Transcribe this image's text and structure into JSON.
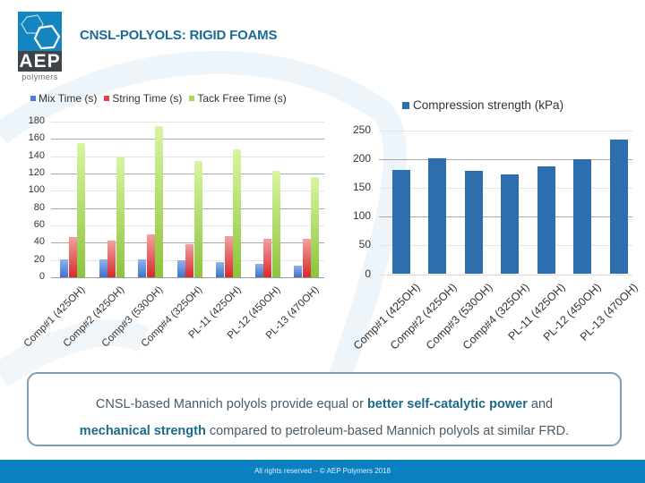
{
  "header": {
    "logo": {
      "main": "AEP",
      "sub": "polymers",
      "icon": "hexagon-rings-logo-icon"
    },
    "title": "CNSL-POLYOLS: RIGID FOAMS"
  },
  "colors": {
    "brand_blue": "#1585bf",
    "title": "#1a6b94",
    "mix_time": "#4a7fd4",
    "string_time": "#e04444",
    "tack_free_time": "#a6d65a",
    "compression": "#2e6eaf",
    "footer": "#0a80c0"
  },
  "chart_data": [
    {
      "type": "bar",
      "title": "",
      "xlabel": "",
      "ylabel": "",
      "ylim": [
        0,
        180
      ],
      "yticks": [
        0,
        20,
        40,
        60,
        80,
        100,
        120,
        140,
        160,
        180
      ],
      "grid": true,
      "legend_position": "top",
      "categories": [
        "Comp#1 (425OH)",
        "Comp#2 (425OH)",
        "Comp#3 (530OH)",
        "Comp#4 (325OH)",
        "PL-11 (425OH)",
        "PL-12 (450OH)",
        "PL-13 (470OH)"
      ],
      "series": [
        {
          "name": "Mix Time (s)",
          "values": [
            21,
            21,
            21,
            20,
            18,
            16,
            13
          ]
        },
        {
          "name": "String Time (s)",
          "values": [
            47,
            42,
            50,
            38,
            48,
            45,
            44
          ]
        },
        {
          "name": "Tack Free Time (s)",
          "values": [
            155,
            140,
            175,
            135,
            148,
            123,
            116
          ]
        }
      ]
    },
    {
      "type": "bar",
      "title": "",
      "xlabel": "",
      "ylabel": "",
      "ylim": [
        0,
        250
      ],
      "yticks": [
        0,
        50,
        100,
        150,
        200,
        250
      ],
      "grid": true,
      "legend_position": "top",
      "categories": [
        "Comp#1 (425OH)",
        "Comp#2 (425OH)",
        "Comp#3 (530OH)",
        "Comp#4 (325OH)",
        "PL-11 (425OH)",
        "PL-12 (450OH)",
        "PL-13 (470OH)"
      ],
      "series": [
        {
          "name": "Compression strength (kPa)",
          "values": [
            181,
            201,
            180,
            173,
            187,
            200,
            234
          ]
        }
      ]
    }
  ],
  "callout": {
    "part1": "CNSL-based Mannich polyols provide equal or ",
    "bold1": "better self-catalytic power",
    "part2": " and",
    "bold2": "mechanical strength",
    "part3": " compared to petroleum-based Mannich polyols at similar FRD."
  },
  "footer": {
    "text": "All rights reserved –  © AEP Polymers 2018"
  }
}
